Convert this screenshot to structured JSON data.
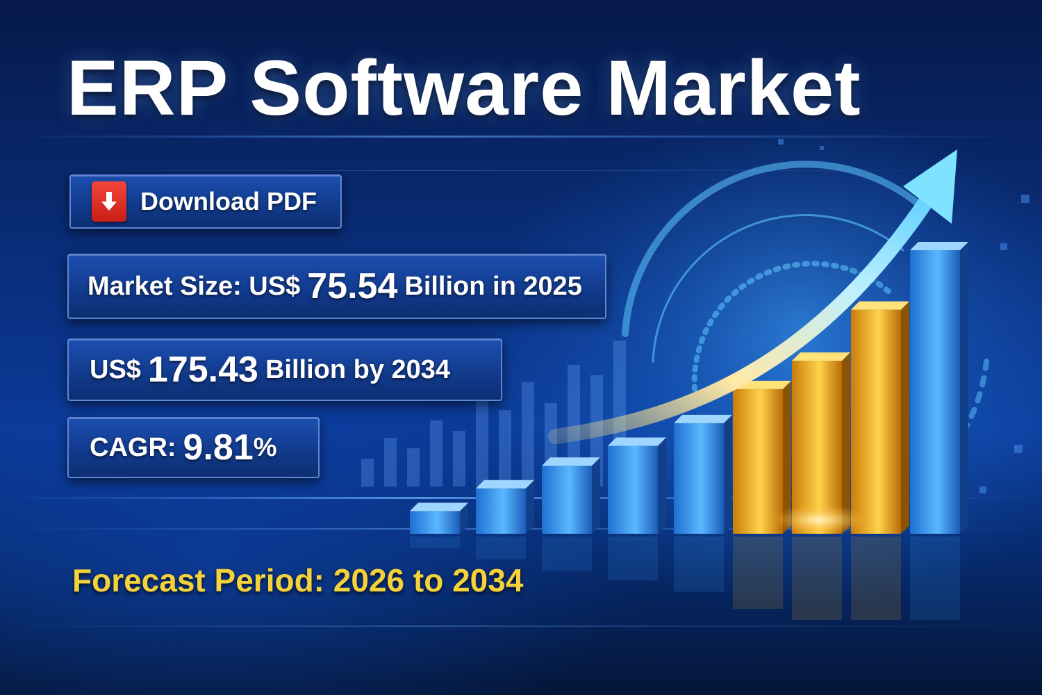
{
  "title": "ERP Software Market",
  "download_button": {
    "label": "Download PDF",
    "icon": "download-arrow-icon",
    "icon_color": "#e0332a"
  },
  "market_size": {
    "prefix": "Market Size: US$",
    "value": "75.54",
    "suffix": "Billion in 2025"
  },
  "forecast_value": {
    "prefix": "US$",
    "value": "175.43",
    "suffix": "Billion by 2034"
  },
  "cagr": {
    "prefix": "CAGR:",
    "value": "9.81",
    "suffix": "%"
  },
  "forecast_period": "Forecast Period: 2026 to 2034",
  "colors": {
    "background": "#0a2f7e",
    "title": "#ffffff",
    "forecast_text": "#f5d23a",
    "blue_bar": "#3aa0f0",
    "gold_bar": "#f2b21e",
    "arrow": "#8fe0ff"
  },
  "decorative_graphic": {
    "type": "bar",
    "bar_colors": [
      "blue",
      "blue",
      "blue",
      "blue",
      "blue",
      "gold",
      "gold",
      "gold",
      "blue"
    ],
    "relative_values": [
      0.08,
      0.16,
      0.24,
      0.31,
      0.39,
      0.51,
      0.61,
      0.79,
      1.0
    ],
    "trend": "upward-arrow"
  }
}
